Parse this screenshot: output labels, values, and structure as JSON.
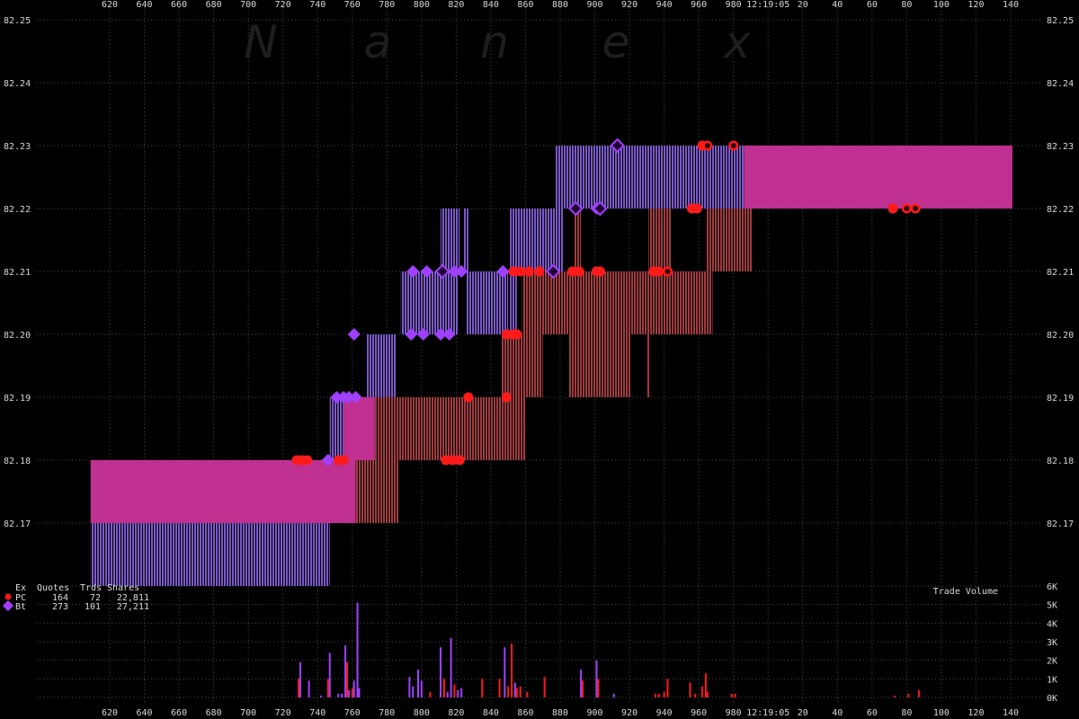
{
  "watermark": [
    "N",
    "a",
    "n",
    "e",
    "x"
  ],
  "chart_data": {
    "type": "tick-chart",
    "x_axis": {
      "ticks": [
        "620",
        "640",
        "660",
        "680",
        "700",
        "720",
        "740",
        "760",
        "780",
        "800",
        "820",
        "840",
        "860",
        "880",
        "900",
        "920",
        "940",
        "960",
        "980",
        "12:19:05",
        "20",
        "40",
        "60",
        "80",
        "100",
        "120",
        "140"
      ],
      "tick_values": [
        620,
        640,
        660,
        680,
        700,
        720,
        740,
        760,
        780,
        800,
        820,
        840,
        860,
        880,
        900,
        920,
        940,
        960,
        980,
        1000,
        1020,
        1040,
        1060,
        1080,
        1100,
        1120,
        1140
      ],
      "range": [
        604,
        1154
      ]
    },
    "price_axis": {
      "range": [
        82.162,
        82.25
      ],
      "ticks": [
        "82.17",
        "82.18",
        "82.19",
        "82.20",
        "82.21",
        "82.22",
        "82.23",
        "82.24",
        "82.25"
      ],
      "tick_values": [
        82.17,
        82.18,
        82.19,
        82.2,
        82.21,
        82.22,
        82.23,
        82.24,
        82.25
      ]
    },
    "volume_axis": {
      "title": "Trade Volume",
      "range": [
        0,
        6000
      ],
      "ticks": [
        "0K",
        "1K",
        "2K",
        "3K",
        "4K",
        "5K",
        "6K"
      ],
      "tick_values": [
        0,
        1000,
        2000,
        3000,
        4000,
        5000,
        6000
      ]
    },
    "colors": {
      "pc": "#ff1a1a",
      "bt": "#a040ff",
      "nbbo_spread": "#c03090",
      "bt_quote": "#7a5ac8",
      "pc_quote": "#a03c40",
      "grid": "#4a4a4a"
    },
    "legend": {
      "header": [
        "Ex",
        "Quotes",
        "Trds",
        "Shares"
      ],
      "rows": [
        {
          "ex": "PC",
          "quotes": "164",
          "trds": "72",
          "shares": "22,811",
          "marker": "circle",
          "color": "#ff1a1a"
        },
        {
          "ex": "Bt",
          "quotes": "273",
          "trds": "101",
          "shares": "27,211",
          "marker": "diamond",
          "color": "#a040ff"
        }
      ]
    },
    "spread_bands": [
      {
        "x0": 609,
        "x1": 762,
        "lo": 82.17,
        "hi": 82.18
      },
      {
        "x0": 755,
        "x1": 773,
        "lo": 82.18,
        "hi": 82.19
      },
      {
        "x0": 986,
        "x1": 1141,
        "lo": 82.22,
        "hi": 82.23
      }
    ],
    "bt_quote_bands": [
      {
        "x0": 609,
        "x1": 747,
        "lo": 82.16,
        "hi": 82.17
      },
      {
        "x0": 747,
        "x1": 755,
        "lo": 82.18,
        "hi": 82.19
      },
      {
        "x0": 768,
        "x1": 785,
        "lo": 82.19,
        "hi": 82.2
      },
      {
        "x0": 788,
        "x1": 821,
        "lo": 82.2,
        "hi": 82.21
      },
      {
        "x0": 811,
        "x1": 822,
        "lo": 82.21,
        "hi": 82.22
      },
      {
        "x0": 824,
        "x1": 827,
        "lo": 82.21,
        "hi": 82.22
      },
      {
        "x0": 826,
        "x1": 850,
        "lo": 82.2,
        "hi": 82.21
      },
      {
        "x0": 851,
        "x1": 855,
        "lo": 82.2,
        "hi": 82.21
      },
      {
        "x0": 851,
        "x1": 882,
        "lo": 82.21,
        "hi": 82.22
      },
      {
        "x0": 877,
        "x1": 986,
        "lo": 82.22,
        "hi": 82.23
      }
    ],
    "pc_quote_bands": [
      {
        "x0": 762,
        "x1": 787,
        "lo": 82.17,
        "hi": 82.18
      },
      {
        "x0": 773,
        "x1": 860,
        "lo": 82.18,
        "hi": 82.19
      },
      {
        "x0": 846,
        "x1": 870,
        "lo": 82.19,
        "hi": 82.2
      },
      {
        "x0": 858,
        "x1": 968,
        "lo": 82.2,
        "hi": 82.21
      },
      {
        "x0": 885,
        "x1": 921,
        "lo": 82.19,
        "hi": 82.2
      },
      {
        "x0": 930,
        "x1": 932,
        "lo": 82.19,
        "hi": 82.2
      },
      {
        "x0": 888,
        "x1": 892,
        "lo": 82.21,
        "hi": 82.22
      },
      {
        "x0": 931,
        "x1": 944,
        "lo": 82.21,
        "hi": 82.22
      },
      {
        "x0": 964,
        "x1": 991,
        "lo": 82.21,
        "hi": 82.22
      }
    ],
    "pc_trades": [
      {
        "x": 728,
        "price": 82.18
      },
      {
        "x": 731,
        "price": 82.18
      },
      {
        "x": 734,
        "price": 82.18
      },
      {
        "x": 752,
        "price": 82.18
      },
      {
        "x": 755,
        "price": 82.18
      },
      {
        "x": 814,
        "price": 82.18
      },
      {
        "x": 818,
        "price": 82.18
      },
      {
        "x": 822,
        "price": 82.18
      },
      {
        "x": 827,
        "price": 82.19
      },
      {
        "x": 849,
        "price": 82.19
      },
      {
        "x": 849,
        "price": 82.2
      },
      {
        "x": 853,
        "price": 82.2
      },
      {
        "x": 855,
        "price": 82.2
      },
      {
        "x": 853,
        "price": 82.21
      },
      {
        "x": 857,
        "price": 82.21
      },
      {
        "x": 862,
        "price": 82.21
      },
      {
        "x": 868,
        "price": 82.21
      },
      {
        "x": 887,
        "price": 82.21
      },
      {
        "x": 891,
        "price": 82.21
      },
      {
        "x": 901,
        "price": 82.21
      },
      {
        "x": 903,
        "price": 82.21
      },
      {
        "x": 934,
        "price": 82.21
      },
      {
        "x": 937,
        "price": 82.21
      },
      {
        "x": 942,
        "price": 82.21,
        "ring": true
      },
      {
        "x": 956,
        "price": 82.22
      },
      {
        "x": 959,
        "price": 82.22
      },
      {
        "x": 962,
        "price": 82.23
      },
      {
        "x": 965,
        "price": 82.23,
        "ring": true
      },
      {
        "x": 980,
        "price": 82.23,
        "ring": true
      },
      {
        "x": 1072,
        "price": 82.22
      },
      {
        "x": 1080,
        "price": 82.22,
        "ring": true
      },
      {
        "x": 1085,
        "price": 82.22,
        "ring": true
      }
    ],
    "bt_trades": [
      {
        "x": 746,
        "price": 82.18
      },
      {
        "x": 751,
        "price": 82.19
      },
      {
        "x": 755,
        "price": 82.19
      },
      {
        "x": 758,
        "price": 82.19
      },
      {
        "x": 762,
        "price": 82.19
      },
      {
        "x": 761,
        "price": 82.2
      },
      {
        "x": 795,
        "price": 82.21
      },
      {
        "x": 803,
        "price": 82.21
      },
      {
        "x": 812,
        "price": 82.21,
        "hollow": true
      },
      {
        "x": 819,
        "price": 82.21
      },
      {
        "x": 823,
        "price": 82.21
      },
      {
        "x": 794,
        "price": 82.2
      },
      {
        "x": 801,
        "price": 82.2
      },
      {
        "x": 811,
        "price": 82.2
      },
      {
        "x": 816,
        "price": 82.2
      },
      {
        "x": 847,
        "price": 82.21
      },
      {
        "x": 876,
        "price": 82.21,
        "hollow": true
      },
      {
        "x": 889,
        "price": 82.22,
        "hollow": true
      },
      {
        "x": 901,
        "price": 82.22
      },
      {
        "x": 903,
        "price": 82.22,
        "hollow": true
      },
      {
        "x": 913,
        "price": 82.23,
        "hollow": true
      }
    ],
    "volume_bars": [
      {
        "x": 729,
        "v": 1000,
        "ex": "PC"
      },
      {
        "x": 730,
        "v": 1900,
        "ex": "Bt"
      },
      {
        "x": 735,
        "v": 900,
        "ex": "Bt"
      },
      {
        "x": 742,
        "v": 100,
        "ex": "Bt"
      },
      {
        "x": 746,
        "v": 1000,
        "ex": "PC"
      },
      {
        "x": 747,
        "v": 2400,
        "ex": "Bt"
      },
      {
        "x": 752,
        "v": 200,
        "ex": "Bt"
      },
      {
        "x": 754,
        "v": 200,
        "ex": "Bt"
      },
      {
        "x": 756,
        "v": 2800,
        "ex": "Bt"
      },
      {
        "x": 757,
        "v": 1900,
        "ex": "PC"
      },
      {
        "x": 758,
        "v": 400,
        "ex": "Bt"
      },
      {
        "x": 760,
        "v": 500,
        "ex": "PC"
      },
      {
        "x": 761,
        "v": 900,
        "ex": "Bt"
      },
      {
        "x": 763,
        "v": 5100,
        "ex": "Bt"
      },
      {
        "x": 764,
        "v": 500,
        "ex": "Bt"
      },
      {
        "x": 793,
        "v": 1100,
        "ex": "Bt"
      },
      {
        "x": 795,
        "v": 600,
        "ex": "Bt"
      },
      {
        "x": 798,
        "v": 1500,
        "ex": "Bt"
      },
      {
        "x": 800,
        "v": 900,
        "ex": "Bt"
      },
      {
        "x": 805,
        "v": 300,
        "ex": "PC"
      },
      {
        "x": 811,
        "v": 2700,
        "ex": "Bt"
      },
      {
        "x": 813,
        "v": 1000,
        "ex": "PC"
      },
      {
        "x": 815,
        "v": 300,
        "ex": "Bt"
      },
      {
        "x": 817,
        "v": 3200,
        "ex": "Bt"
      },
      {
        "x": 819,
        "v": 700,
        "ex": "PC"
      },
      {
        "x": 821,
        "v": 400,
        "ex": "Bt"
      },
      {
        "x": 823,
        "v": 500,
        "ex": "Bt"
      },
      {
        "x": 835,
        "v": 1000,
        "ex": "PC"
      },
      {
        "x": 845,
        "v": 1000,
        "ex": "PC"
      },
      {
        "x": 848,
        "v": 2700,
        "ex": "Bt"
      },
      {
        "x": 850,
        "v": 600,
        "ex": "PC"
      },
      {
        "x": 852,
        "v": 2900,
        "ex": "PC"
      },
      {
        "x": 854,
        "v": 800,
        "ex": "Bt"
      },
      {
        "x": 855,
        "v": 500,
        "ex": "PC"
      },
      {
        "x": 857,
        "v": 600,
        "ex": "PC"
      },
      {
        "x": 861,
        "v": 300,
        "ex": "PC"
      },
      {
        "x": 871,
        "v": 1100,
        "ex": "PC"
      },
      {
        "x": 892,
        "v": 1500,
        "ex": "Bt"
      },
      {
        "x": 893,
        "v": 900,
        "ex": "PC"
      },
      {
        "x": 901,
        "v": 2000,
        "ex": "Bt"
      },
      {
        "x": 902,
        "v": 1000,
        "ex": "PC"
      },
      {
        "x": 911,
        "v": 200,
        "ex": "Bt"
      },
      {
        "x": 935,
        "v": 200,
        "ex": "PC"
      },
      {
        "x": 937,
        "v": 200,
        "ex": "PC"
      },
      {
        "x": 940,
        "v": 300,
        "ex": "PC"
      },
      {
        "x": 942,
        "v": 1000,
        "ex": "PC"
      },
      {
        "x": 955,
        "v": 800,
        "ex": "PC"
      },
      {
        "x": 958,
        "v": 200,
        "ex": "PC"
      },
      {
        "x": 962,
        "v": 600,
        "ex": "PC"
      },
      {
        "x": 964,
        "v": 1300,
        "ex": "PC"
      },
      {
        "x": 965,
        "v": 300,
        "ex": "PC"
      },
      {
        "x": 979,
        "v": 200,
        "ex": "PC"
      },
      {
        "x": 981,
        "v": 200,
        "ex": "PC"
      },
      {
        "x": 1073,
        "v": 100,
        "ex": "PC"
      },
      {
        "x": 1081,
        "v": 200,
        "ex": "PC"
      },
      {
        "x": 1087,
        "v": 400,
        "ex": "PC"
      }
    ]
  }
}
